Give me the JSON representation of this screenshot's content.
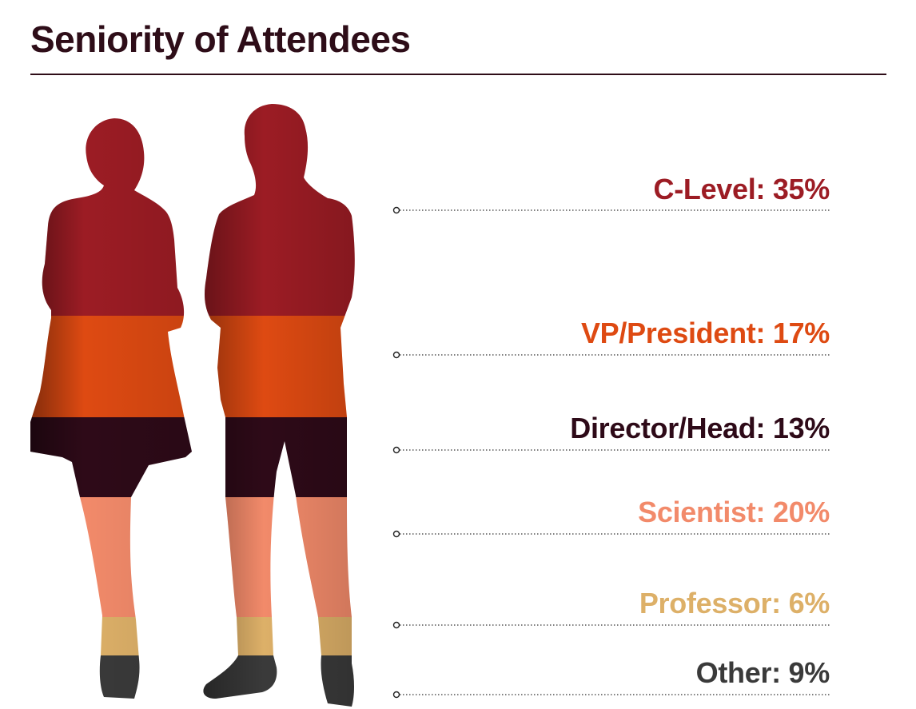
{
  "title": "Seniority of Attendees",
  "chart_data": {
    "type": "pictograph",
    "title": "Seniority of Attendees",
    "unit": "%",
    "categories": [
      "C-Level",
      "VP/President",
      "Director/Head",
      "Scientist",
      "Professor",
      "Other"
    ],
    "values": [
      35,
      17,
      13,
      20,
      6,
      9
    ],
    "labels": [
      "C-Level: 35%",
      "VP/President: 17%",
      "Director/Head: 13%",
      "Scientist: 20%",
      "Professor: 6%",
      "Other: 9%"
    ],
    "colors": [
      "#9c1c24",
      "#de4a12",
      "#2e0a18",
      "#f28a6a",
      "#ddb068",
      "#3a3a3a"
    ]
  }
}
